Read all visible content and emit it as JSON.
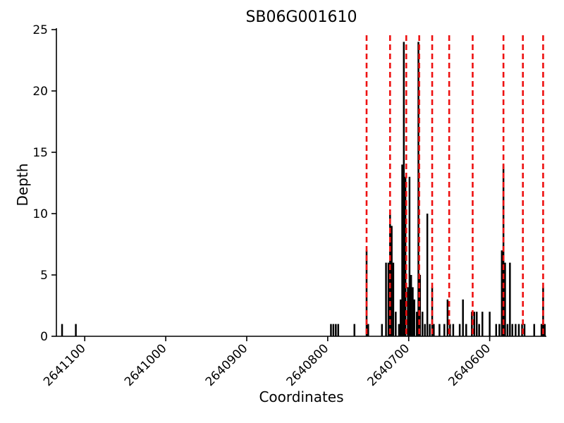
{
  "chart_data": {
    "type": "bar",
    "title": "SB06G001610",
    "xlabel": "Coordinates",
    "ylabel": "Depth",
    "x_axis_reversed": true,
    "xlim": [
      2641135,
      2640530
    ],
    "ylim": [
      0,
      25
    ],
    "x_ticks": [
      2641100,
      2641000,
      2640900,
      2640800,
      2640700,
      2640600
    ],
    "y_ticks": [
      0,
      5,
      10,
      15,
      20,
      25
    ],
    "grid": false,
    "legend": "none",
    "bar_color": "#000000",
    "axis_color": "#000000",
    "snp_line_color": "#ee1111",
    "snp_line_style": "dashed",
    "snp_lines": [
      2640752,
      2640723,
      2640703,
      2640687,
      2640671,
      2640650,
      2640621,
      2640583,
      2640559,
      2640534
    ],
    "bars": [
      {
        "x": 2641128,
        "h": 1
      },
      {
        "x": 2641111,
        "h": 1
      },
      {
        "x": 2640796,
        "h": 1
      },
      {
        "x": 2640793,
        "h": 1
      },
      {
        "x": 2640790,
        "h": 1
      },
      {
        "x": 2640787,
        "h": 1
      },
      {
        "x": 2640767,
        "h": 1
      },
      {
        "x": 2640752,
        "h": 7
      },
      {
        "x": 2640750,
        "h": 1
      },
      {
        "x": 2640733,
        "h": 1
      },
      {
        "x": 2640728,
        "h": 6
      },
      {
        "x": 2640725,
        "h": 6
      },
      {
        "x": 2640723,
        "h": 10
      },
      {
        "x": 2640721,
        "h": 9
      },
      {
        "x": 2640719,
        "h": 6
      },
      {
        "x": 2640716,
        "h": 2
      },
      {
        "x": 2640712,
        "h": 1
      },
      {
        "x": 2640710,
        "h": 3
      },
      {
        "x": 2640708,
        "h": 14
      },
      {
        "x": 2640706,
        "h": 24
      },
      {
        "x": 2640704,
        "h": 13
      },
      {
        "x": 2640701,
        "h": 4
      },
      {
        "x": 2640699,
        "h": 13
      },
      {
        "x": 2640697,
        "h": 5
      },
      {
        "x": 2640695,
        "h": 4
      },
      {
        "x": 2640693,
        "h": 3
      },
      {
        "x": 2640690,
        "h": 2
      },
      {
        "x": 2640688,
        "h": 24
      },
      {
        "x": 2640686,
        "h": 5
      },
      {
        "x": 2640683,
        "h": 2
      },
      {
        "x": 2640680,
        "h": 1
      },
      {
        "x": 2640677,
        "h": 10
      },
      {
        "x": 2640674,
        "h": 1
      },
      {
        "x": 2640671,
        "h": 4
      },
      {
        "x": 2640669,
        "h": 1
      },
      {
        "x": 2640662,
        "h": 1
      },
      {
        "x": 2640656,
        "h": 1
      },
      {
        "x": 2640652,
        "h": 3
      },
      {
        "x": 2640649,
        "h": 1
      },
      {
        "x": 2640645,
        "h": 1
      },
      {
        "x": 2640637,
        "h": 1
      },
      {
        "x": 2640633,
        "h": 3
      },
      {
        "x": 2640629,
        "h": 1
      },
      {
        "x": 2640622,
        "h": 2
      },
      {
        "x": 2640619,
        "h": 2
      },
      {
        "x": 2640616,
        "h": 2
      },
      {
        "x": 2640613,
        "h": 1
      },
      {
        "x": 2640609,
        "h": 2
      },
      {
        "x": 2640600,
        "h": 2
      },
      {
        "x": 2640592,
        "h": 1
      },
      {
        "x": 2640588,
        "h": 1
      },
      {
        "x": 2640585,
        "h": 7
      },
      {
        "x": 2640583,
        "h": 14
      },
      {
        "x": 2640581,
        "h": 6
      },
      {
        "x": 2640578,
        "h": 1
      },
      {
        "x": 2640575,
        "h": 6
      },
      {
        "x": 2640572,
        "h": 1
      },
      {
        "x": 2640568,
        "h": 1
      },
      {
        "x": 2640564,
        "h": 1
      },
      {
        "x": 2640560,
        "h": 1
      },
      {
        "x": 2640557,
        "h": 1
      },
      {
        "x": 2640545,
        "h": 1
      },
      {
        "x": 2640536,
        "h": 1
      },
      {
        "x": 2640534,
        "h": 4
      },
      {
        "x": 2640532,
        "h": 1
      }
    ]
  }
}
